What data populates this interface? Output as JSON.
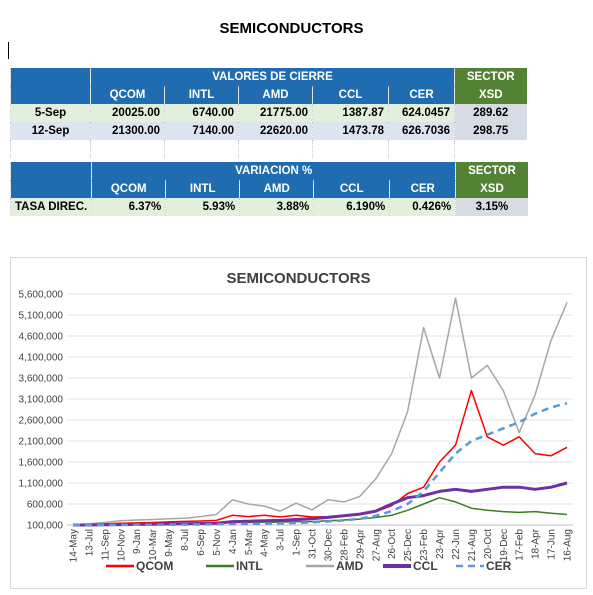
{
  "page_title": "SEMICONDUCTORS",
  "table1": {
    "header": "VALORES DE CIERRE",
    "sector_label": "SECTOR",
    "columns": [
      "QCOM",
      "INTL",
      "AMD",
      "CCL",
      "CER"
    ],
    "sector_col": "XSD",
    "rows": [
      {
        "date": "5-Sep",
        "values": [
          "20025.00",
          "6740.00",
          "21775.00",
          "1387.87",
          "624.0457"
        ],
        "xsd": "289.62"
      },
      {
        "date": "12-Sep",
        "values": [
          "21300.00",
          "7140.00",
          "22620.00",
          "1473.78",
          "626.7036"
        ],
        "xsd": "298.75"
      }
    ]
  },
  "table2": {
    "header": "VARIACION %",
    "sector_label": "SECTOR",
    "columns": [
      "QCOM",
      "INTL",
      "AMD",
      "CCL",
      "CER"
    ],
    "sector_col": "XSD",
    "row": {
      "label": "TASA DIREC.",
      "values": [
        "6.37%",
        "5.93%",
        "3.88%",
        "6.190%",
        "0.426%"
      ],
      "xsd": "3.15%"
    }
  },
  "chart_data": {
    "type": "line",
    "title": "SEMICONDUCTORS",
    "y_ticks": [
      "5,600,000",
      "5,100,000",
      "4,600,000",
      "4,100,000",
      "3,600,000",
      "3,100,000",
      "2,600,000",
      "2,100,000",
      "1,600,000",
      "1,100,000",
      "600,000",
      "100,000"
    ],
    "ylim": [
      100000,
      5600000
    ],
    "x_ticks": [
      "14-May",
      "13-Jul",
      "11-Sep",
      "10-Nov",
      "9-Jan",
      "10-Mar",
      "9-May",
      "8-Jul",
      "6-Sep",
      "5-Nov",
      "4-Jan",
      "5-Mar",
      "4-May",
      "3-Jul",
      "1-Sep",
      "31-Oct",
      "30-Dec",
      "28-Feb",
      "29-Apr",
      "27-Aug",
      "26-Oct",
      "25-Dec",
      "23-Feb",
      "23-Apr",
      "22-Jun",
      "21-Aug",
      "20-Oct",
      "19-Dec",
      "17-Feb",
      "18-Apr",
      "17-Jun",
      "16-Aug"
    ],
    "legend_position": "bottom",
    "series": [
      {
        "name": "QCOM",
        "color": "#ff0000",
        "dash": "solid",
        "width": 1.5,
        "values": [
          100000,
          110000,
          125000,
          140000,
          150000,
          160000,
          175000,
          185000,
          195000,
          210000,
          330000,
          300000,
          330000,
          290000,
          330000,
          290000,
          300000,
          330000,
          360000,
          420000,
          560000,
          850000,
          1000000,
          1600000,
          2000000,
          3300000,
          2200000,
          2000000,
          2200000,
          1800000,
          1750000,
          1950000
        ]
      },
      {
        "name": "INTL",
        "color": "#3a7d22",
        "dash": "solid",
        "width": 1.5,
        "values": [
          100000,
          105000,
          110000,
          115000,
          120000,
          125000,
          130000,
          130000,
          135000,
          140000,
          160000,
          160000,
          170000,
          170000,
          180000,
          180000,
          200000,
          220000,
          240000,
          280000,
          330000,
          450000,
          600000,
          750000,
          650000,
          500000,
          450000,
          420000,
          400000,
          420000,
          380000,
          350000
        ]
      },
      {
        "name": "AMD",
        "color": "#a6a6a6",
        "dash": "solid",
        "width": 1.5,
        "values": [
          100000,
          130000,
          160000,
          200000,
          220000,
          230000,
          250000,
          260000,
          300000,
          350000,
          700000,
          600000,
          550000,
          430000,
          620000,
          460000,
          700000,
          650000,
          780000,
          1200000,
          1800000,
          2800000,
          4800000,
          3600000,
          5500000,
          3600000,
          3900000,
          3300000,
          2300000,
          3200000,
          4500000,
          5400000
        ]
      },
      {
        "name": "CCL",
        "color": "#7030a0",
        "dash": "solid",
        "width": 3,
        "values": [
          100000,
          100000,
          105000,
          110000,
          115000,
          120000,
          125000,
          130000,
          135000,
          140000,
          180000,
          190000,
          200000,
          210000,
          230000,
          250000,
          280000,
          320000,
          360000,
          430000,
          600000,
          750000,
          800000,
          900000,
          950000,
          900000,
          950000,
          1000000,
          1000000,
          950000,
          1000000,
          1100000
        ]
      },
      {
        "name": "CER",
        "color": "#5b9bd5",
        "dash": "dashed",
        "width": 2.5,
        "values": [
          100000,
          100000,
          100000,
          102000,
          104000,
          106000,
          108000,
          110000,
          112000,
          115000,
          120000,
          125000,
          130000,
          140000,
          150000,
          165000,
          185000,
          210000,
          250000,
          320000,
          430000,
          600000,
          900000,
          1350000,
          1800000,
          2100000,
          2250000,
          2400000,
          2550000,
          2750000,
          2900000,
          3000000
        ]
      }
    ]
  }
}
